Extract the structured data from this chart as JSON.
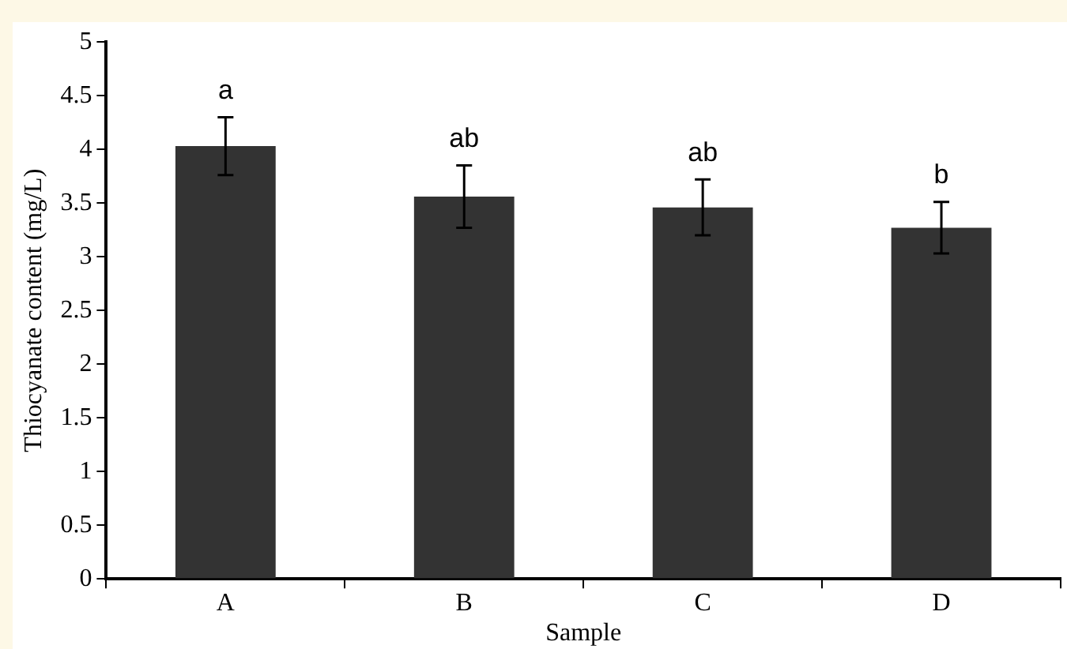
{
  "chart_data": {
    "type": "bar",
    "xlabel": "Sample",
    "ylabel": "Thiocyanate content (mg/L)",
    "categories": [
      "A",
      "B",
      "C",
      "D"
    ],
    "values": [
      4.03,
      3.56,
      3.46,
      3.27
    ],
    "errors": [
      0.27,
      0.29,
      0.26,
      0.24
    ],
    "color": "#333333",
    "ylim": [
      0,
      5
    ],
    "yticks": [
      0,
      0.5,
      1,
      1.5,
      2,
      2.5,
      3,
      3.5,
      4,
      4.5,
      5
    ],
    "annotations": [
      {
        "text": "a",
        "x": "A",
        "y": 4.3
      },
      {
        "text": "ab",
        "x": "B",
        "y": 3.85
      },
      {
        "text": "ab",
        "x": "C",
        "y": 3.72
      },
      {
        "text": "b",
        "x": "D",
        "y": 3.51
      }
    ],
    "grid": false,
    "legend": false
  }
}
